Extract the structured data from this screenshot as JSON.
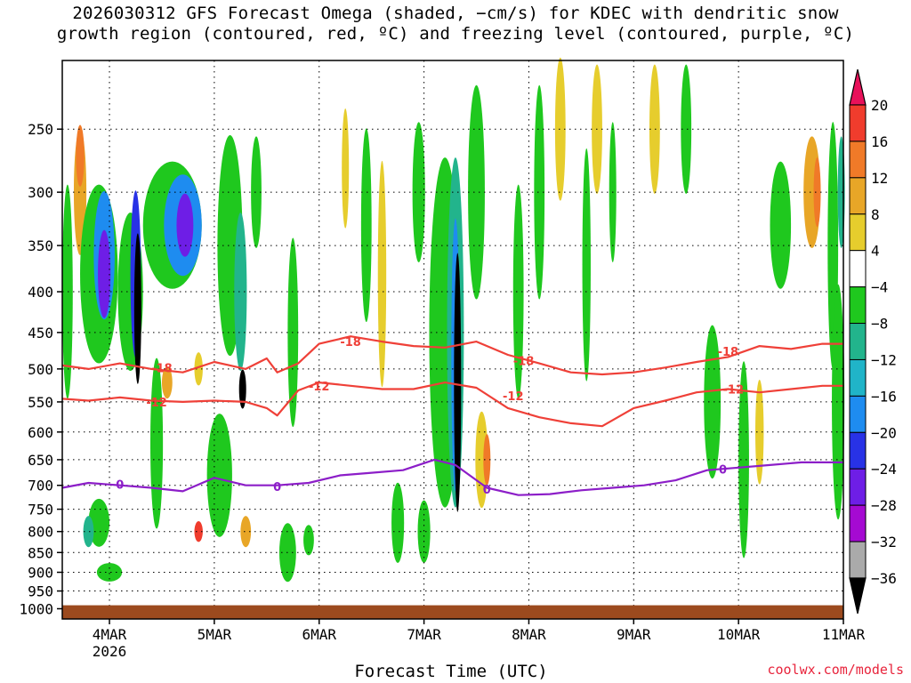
{
  "title": {
    "line1": "2026030312 GFS Forecast Omega (shaded, −cm/s) for KDEC with dendritic snow",
    "line2": "growth region (contoured, red, ºC) and freezing level (contoured, purple, ºC)"
  },
  "credit": "coolwx.com/models",
  "chart_data": {
    "type": "heatmap",
    "xlabel": "Forecast Time (UTC)",
    "ylabel": "",
    "x_ticks": [
      "4MAR",
      "5MAR",
      "6MAR",
      "7MAR",
      "8MAR",
      "9MAR",
      "10MAR",
      "11MAR"
    ],
    "x_year_label": "2026",
    "y_ticks": [
      250,
      300,
      350,
      400,
      450,
      500,
      550,
      600,
      650,
      700,
      750,
      800,
      850,
      900,
      950,
      1000
    ],
    "y_axis": "pressure (hPa), log scale, decreasing upward",
    "colorbar": {
      "labels": [
        "20",
        "16",
        "12",
        "8",
        "4",
        "−4",
        "−8",
        "−12",
        "−16",
        "−20",
        "−24",
        "−28",
        "−32",
        "−36"
      ],
      "colors": [
        "#e8115a",
        "#f03c2d",
        "#f07a28",
        "#e8a627",
        "#e6cd2d",
        "#ffffff",
        "#1fc81e",
        "#22b48c",
        "#20b4c8",
        "#1e8cf0",
        "#2832e6",
        "#6e1ee6",
        "#a50ad2",
        "#aaaaaa",
        "#000000"
      ]
    },
    "contours": [
      {
        "label": "-18",
        "color": "#ef4038",
        "x": [
          3.55,
          3.8,
          4.1,
          4.4,
          4.7,
          5.0,
          5.3,
          5.5,
          5.6,
          5.8,
          6.0,
          6.3,
          6.6,
          6.9,
          7.2,
          7.5,
          7.8,
          8.1,
          8.4,
          8.7,
          9.0,
          9.3,
          9.6,
          9.9,
          10.2,
          10.5,
          10.8,
          11.0
        ],
        "p": [
          495,
          500,
          492,
          500,
          505,
          490,
          500,
          485,
          505,
          492,
          465,
          455,
          462,
          468,
          470,
          462,
          480,
          492,
          505,
          508,
          505,
          498,
          490,
          483,
          468,
          472,
          465,
          465
        ],
        "label_at": [
          [
            4.5,
            498
          ],
          [
            6.3,
            462
          ],
          [
            7.95,
            488
          ],
          [
            9.9,
            475
          ]
        ]
      },
      {
        "label": "-12",
        "color": "#ef4038",
        "x": [
          3.55,
          3.8,
          4.1,
          4.4,
          4.7,
          5.0,
          5.3,
          5.5,
          5.6,
          5.8,
          6.0,
          6.3,
          6.6,
          6.9,
          7.2,
          7.5,
          7.8,
          8.1,
          8.4,
          8.7,
          9.0,
          9.3,
          9.6,
          9.9,
          10.2,
          10.5,
          10.8,
          11.0
        ],
        "p": [
          545,
          548,
          543,
          548,
          550,
          548,
          550,
          560,
          572,
          532,
          520,
          525,
          530,
          530,
          520,
          528,
          560,
          575,
          585,
          590,
          560,
          548,
          535,
          530,
          535,
          530,
          525,
          525
        ],
        "label_at": [
          [
            4.45,
            550
          ],
          [
            6.0,
            525
          ],
          [
            7.85,
            540
          ],
          [
            9.95,
            530
          ]
        ]
      },
      {
        "label": "0",
        "color": "#8c1ec8",
        "x": [
          3.55,
          3.8,
          4.1,
          4.4,
          4.7,
          5.0,
          5.3,
          5.6,
          5.9,
          6.2,
          6.5,
          6.8,
          7.1,
          7.3,
          7.6,
          7.9,
          8.2,
          8.5,
          8.8,
          9.1,
          9.4,
          9.7,
          10.0,
          10.3,
          10.6,
          10.8,
          11.0
        ],
        "p": [
          705,
          695,
          700,
          705,
          712,
          685,
          700,
          700,
          695,
          680,
          675,
          670,
          650,
          660,
          705,
          720,
          718,
          710,
          705,
          700,
          690,
          670,
          665,
          660,
          655,
          655,
          655
        ],
        "label_at": [
          [
            4.1,
            698
          ],
          [
            5.6,
            702
          ],
          [
            7.6,
            708
          ],
          [
            9.85,
            668
          ]
        ]
      }
    ]
  }
}
